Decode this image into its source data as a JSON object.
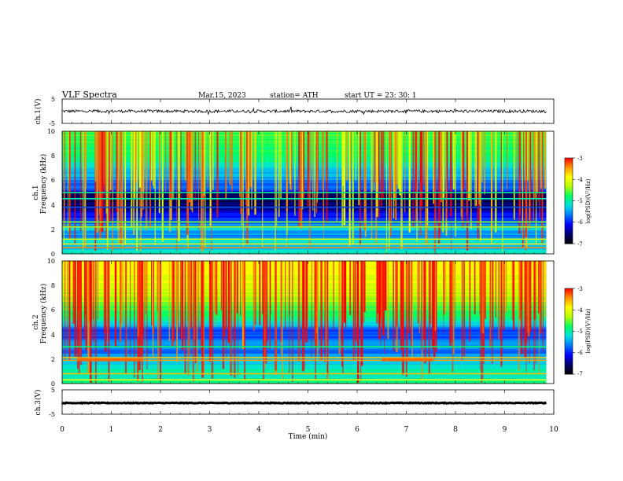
{
  "header": {
    "title": "VLF  Spectra",
    "date": "Mar.15, 2023",
    "station": "station= ATH",
    "start_ut": "start  UT  =    23: 30: 1"
  },
  "chart_data": [
    {
      "type": "line",
      "panel": "ch1-waveform",
      "ylabel": "ch.1(V)",
      "yticks": [
        "5",
        "-5"
      ],
      "ylim": [
        -5,
        5
      ],
      "xlim": [
        0,
        10
      ],
      "x_span_min": [
        0,
        9.85
      ],
      "baseline": 0.0,
      "noise_amplitude": 0.6,
      "line_color": "#000000"
    },
    {
      "type": "heatmap",
      "panel": "ch1-spectrogram",
      "ylabel": "ch.1\nFrequency  (kHz)",
      "ylabel_line1": "ch.1",
      "ylabel_line2": "Frequency  (kHz)",
      "yticks": [
        "10",
        "8",
        "6",
        "4",
        "2",
        "0"
      ],
      "ylim": [
        0,
        10
      ],
      "xlim": [
        0,
        10
      ],
      "x_span_min": [
        0,
        9.85
      ],
      "colorbar": {
        "label": "log(PSD)(V²/Hz)",
        "ticks": [
          "-3",
          "-4",
          "-5",
          "-6",
          "-7"
        ],
        "range": [
          -7,
          -3
        ]
      },
      "bands_khz_to_logpsd": [
        [
          10.0,
          -4.6
        ],
        [
          8.0,
          -4.8
        ],
        [
          6.0,
          -5.6
        ],
        [
          5.2,
          -5.9
        ],
        [
          4.9,
          -6.5
        ],
        [
          4.6,
          -6.6
        ],
        [
          3.9,
          -6.6
        ],
        [
          3.6,
          -6.3
        ],
        [
          3.0,
          -6.0
        ],
        [
          2.5,
          -5.7
        ],
        [
          2.0,
          -5.3
        ],
        [
          1.5,
          -5.6
        ],
        [
          1.0,
          -5.2
        ],
        [
          0.5,
          -5.4
        ],
        [
          0.0,
          -5.0
        ]
      ],
      "lines_khz": [
        [
          0.5,
          -3.4
        ],
        [
          0.8,
          -3.8
        ],
        [
          1.2,
          -4.2
        ],
        [
          2.2,
          -4.3
        ],
        [
          2.6,
          -4.5
        ],
        [
          3.8,
          -5.8
        ],
        [
          4.5,
          -5.0
        ],
        [
          5.0,
          -4.9
        ]
      ]
    },
    {
      "type": "heatmap",
      "panel": "ch2-spectrogram",
      "ylabel_line1": "ch.2",
      "ylabel_line2": "Frequency  (kHz)",
      "yticks": [
        "10",
        "8",
        "6",
        "4",
        "2",
        "0"
      ],
      "ylim": [
        0,
        10
      ],
      "xlim": [
        0,
        10
      ],
      "x_span_min": [
        0,
        9.85
      ],
      "colorbar": {
        "label": "log(PSD)(V²/Hz)",
        "ticks": [
          "-3",
          "-4",
          "-5",
          "-6",
          "-7"
        ],
        "range": [
          -7,
          -3
        ]
      },
      "bands_khz_to_logpsd": [
        [
          10.0,
          -3.9
        ],
        [
          8.0,
          -4.1
        ],
        [
          6.0,
          -4.6
        ],
        [
          5.0,
          -5.2
        ],
        [
          4.5,
          -5.7
        ],
        [
          4.0,
          -5.9
        ],
        [
          3.5,
          -5.6
        ],
        [
          3.0,
          -5.5
        ],
        [
          2.5,
          -5.7
        ],
        [
          2.0,
          -5.3
        ],
        [
          1.5,
          -5.2
        ],
        [
          1.0,
          -5.0
        ],
        [
          0.5,
          -5.2
        ],
        [
          0.0,
          -4.9
        ]
      ],
      "lines_khz": [
        [
          0.8,
          -3.6
        ],
        [
          1.9,
          -3.5
        ],
        [
          2.1,
          -3.7
        ],
        [
          3.0,
          -4.8
        ],
        [
          0.3,
          -3.9
        ]
      ],
      "events": [
        {
          "t0_min": 0.3,
          "t1_min": 1.65,
          "f_khz": 1.95,
          "value": -3.3
        },
        {
          "t0_min": 6.5,
          "t1_min": 7.55,
          "f_khz": 1.95,
          "value": -3.3
        }
      ]
    },
    {
      "type": "line",
      "panel": "ch3-waveform",
      "ylabel": "ch.3(V)",
      "yticks": [
        "5",
        "-5"
      ],
      "ylim": [
        -5,
        5
      ],
      "xlim": [
        0,
        10
      ],
      "x_span_min": [
        0,
        9.85
      ],
      "baseline": -0.4,
      "noise_amplitude": 0.15,
      "line_color": "#000000"
    }
  ],
  "xaxis": {
    "label": "Time  (min)",
    "ticks": [
      "0",
      "1",
      "2",
      "3",
      "4",
      "5",
      "6",
      "7",
      "8",
      "9",
      "10"
    ],
    "range": [
      0,
      10
    ]
  },
  "colormap": [
    "#000000",
    "#00006e",
    "#0000ff",
    "#0078ff",
    "#00e0e0",
    "#00ff64",
    "#b4ff00",
    "#ffff00",
    "#ff9600",
    "#ff0000",
    "#ffffff"
  ]
}
